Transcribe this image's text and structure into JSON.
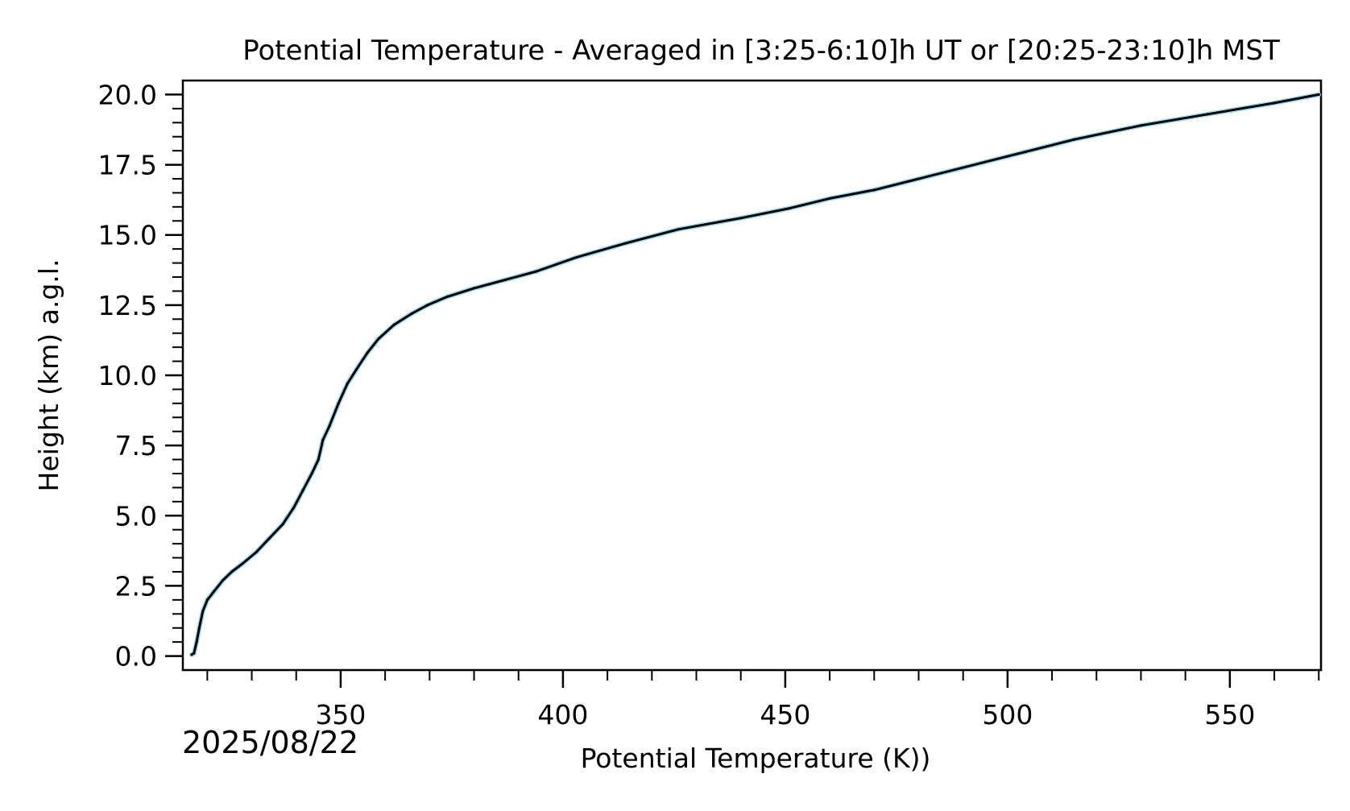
{
  "chart_data": {
    "type": "line",
    "title": "Potential Temperature - Averaged in [3:25-6:10]h UT or [20:25-23:10]h MST",
    "xlabel": "Potential Temperature (K))",
    "ylabel": "Height (km) a.g.l.",
    "date_stamp": "2025/08/22",
    "xlim": [
      314.5,
      570.5
    ],
    "ylim": [
      -0.5,
      20.5
    ],
    "x_ticks": [
      350,
      400,
      450,
      500,
      550
    ],
    "x_tick_labels": [
      "350",
      "400",
      "450",
      "500",
      "550"
    ],
    "y_ticks": [
      0,
      2.5,
      5,
      7.5,
      10,
      12.5,
      15,
      17.5,
      20
    ],
    "y_tick_labels": [
      "0.0",
      "2.5",
      "5.0",
      "7.5",
      "10.0",
      "12.5",
      "15.0",
      "17.5",
      "20.0"
    ],
    "grid": false,
    "line_color": "#000000",
    "shade_color": "#8fd3ee",
    "series": [
      {
        "x": [
          316.5,
          317.0,
          317.6,
          318.2,
          319.0,
          320.0,
          321.5,
          323.5,
          325.5,
          328.0,
          331.0,
          334.0,
          337.0,
          339.5,
          341.5,
          343.5,
          345.0,
          346.0,
          347.5,
          349.5,
          351.5,
          353.5,
          356.0,
          358.5,
          362.0,
          366.0,
          369.5,
          374.0,
          380.0,
          387.0,
          394.0,
          403.0,
          414.0,
          426.0,
          440.0,
          451.0,
          460.0,
          470.0,
          480.0,
          490.0,
          500.0,
          515.0,
          530.0,
          545.0,
          560.0,
          570.0
        ],
        "y": [
          0.05,
          0.1,
          0.5,
          1.0,
          1.6,
          2.0,
          2.3,
          2.7,
          3.0,
          3.3,
          3.7,
          4.2,
          4.7,
          5.3,
          5.9,
          6.5,
          7.0,
          7.7,
          8.2,
          9.0,
          9.7,
          10.2,
          10.8,
          11.3,
          11.8,
          12.2,
          12.5,
          12.8,
          13.1,
          13.4,
          13.7,
          14.2,
          14.7,
          15.2,
          15.6,
          15.95,
          16.3,
          16.6,
          17.0,
          17.4,
          17.8,
          18.4,
          18.9,
          19.3,
          19.7,
          20.0
        ]
      }
    ]
  }
}
